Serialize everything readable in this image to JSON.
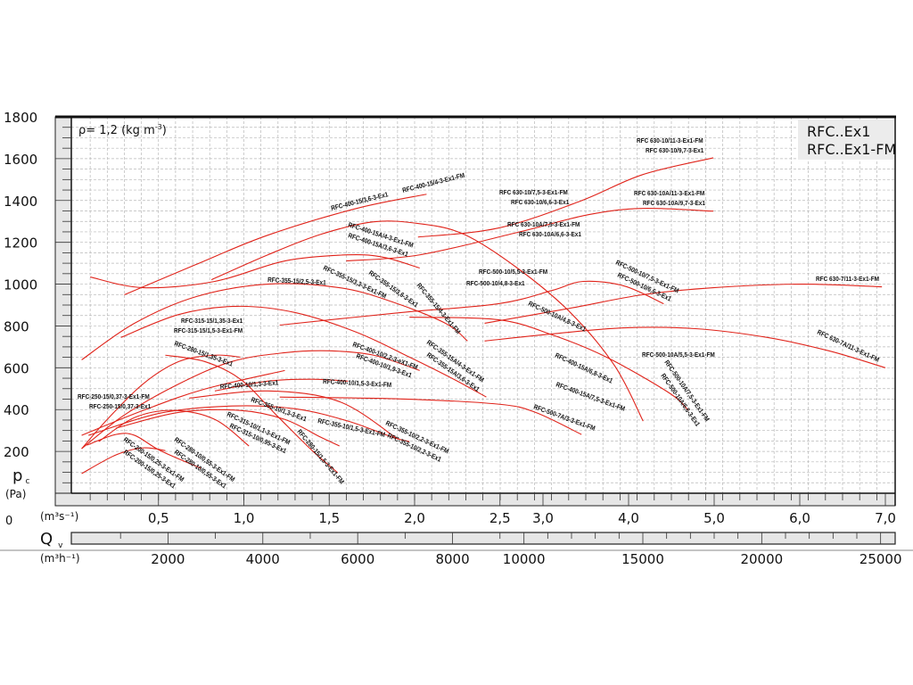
{
  "chart_data": {
    "type": "line",
    "title_lines": [
      "RFC..Ex1",
      "RFC..Ex1-FM"
    ],
    "density_note": "ρ= 1,2 (kg m",
    "density_exp": "-3",
    "density_close": ")",
    "ylabel": "p",
    "ylabel_sub": "c",
    "yunit": "(Pa)",
    "xlabel": "Q",
    "xlabel_sub": "v",
    "x1unit": "(m³s⁻¹)",
    "x2unit": "(m³h⁻¹)",
    "y_zero_label": "0",
    "ylim": [
      0,
      1800
    ],
    "xlim": [
      0,
      7.0
    ],
    "x_scale": "piecewise linear (0–2,5 expanded, 2,5–7,0 compressed)",
    "grid": true,
    "line_color": "#e0241b",
    "y_ticks": [
      200,
      400,
      600,
      800,
      1000,
      1200,
      1400,
      1600,
      1800
    ],
    "y_tick_labels": [
      "200",
      "400",
      "600",
      "800",
      "1000",
      "1200",
      "1400",
      "1600",
      "1800"
    ],
    "x1_ticks": [
      0.5,
      1.0,
      1.5,
      2.0,
      2.5,
      3.0,
      4.0,
      5.0,
      6.0,
      7.0
    ],
    "x1_tick_labels": [
      "0,5",
      "1,0",
      "1,5",
      "2,0",
      "2,5",
      "3,0",
      "4,0",
      "5,0",
      "6,0",
      "7,0"
    ],
    "x2_ticks": [
      2000,
      4000,
      6000,
      8000,
      10000,
      15000,
      20000,
      25000
    ],
    "x2_tick_labels": [
      "2000",
      "4000",
      "6000",
      "8000",
      "10000",
      "15000",
      "20000",
      "25000"
    ],
    "series": [
      {
        "x": [
          0.3,
          0.72,
          1.14,
          1.66,
          2.07
        ],
        "y": [
          949,
          1094,
          1234,
          1362,
          1430
        ]
      },
      {
        "x": [
          0.81,
          1.14,
          1.45,
          1.76,
          2.03,
          2.29,
          2.7,
          3.32,
          3.84,
          4.17
        ],
        "y": [
          1021,
          1140,
          1238,
          1298,
          1289,
          1238,
          1077,
          864,
          608,
          345
        ]
      },
      {
        "x": [
          0.1,
          0.41,
          0.83,
          1.24,
          1.61,
          1.82,
          2.03
        ],
        "y": [
          1034,
          983,
          1013,
          1111,
          1140,
          1128,
          1077
        ]
      },
      {
        "x": [
          0.05,
          0.36,
          0.72,
          1.14,
          1.56,
          1.87,
          2.18,
          2.31
        ],
        "y": [
          638,
          813,
          940,
          1000,
          983,
          915,
          813,
          728
        ]
      },
      {
        "x": [
          0.28,
          0.62,
          0.96,
          1.3,
          1.66,
          1.97,
          2.23,
          2.42
        ],
        "y": [
          745,
          855,
          894,
          864,
          770,
          651,
          545,
          460
        ]
      },
      {
        "x": [
          2.02,
          2.49,
          3.43,
          4.16,
          4.99
        ],
        "y": [
          1225,
          1268,
          1396,
          1523,
          1604
        ]
      },
      {
        "x": [
          1.6,
          2.03,
          2.7,
          3.53,
          4.16,
          4.99
        ],
        "y": [
          1111,
          1140,
          1247,
          1332,
          1362,
          1349
        ]
      },
      {
        "x": [
          1.21,
          1.92,
          2.49,
          3.11,
          3.47,
          3.95,
          4.41
        ],
        "y": [
          804,
          864,
          906,
          970,
          1013,
          991,
          906
        ]
      },
      {
        "x": [
          2.41,
          3.32,
          4.16,
          4.99,
          6.02,
          6.96
        ],
        "y": [
          813,
          885,
          949,
          983,
          1000,
          987
        ]
      },
      {
        "x": [
          2.41,
          3.11,
          3.95,
          4.78,
          5.62,
          6.34,
          7.0
        ],
        "y": [
          728,
          762,
          791,
          787,
          745,
          681,
          600
        ]
      },
      {
        "x": [
          1.97,
          2.49,
          3.11,
          3.74,
          4.47,
          4.7
        ],
        "y": [
          842,
          830,
          757,
          651,
          481,
          396
        ]
      },
      {
        "x": [
          0.05,
          0.3,
          0.62,
          0.93,
          1.24,
          1.5,
          1.76,
          2.03
        ],
        "y": [
          213,
          374,
          523,
          630,
          672,
          681,
          660,
          587
        ]
      },
      {
        "x": [
          0.05,
          0.41,
          0.77,
          1.24
        ],
        "y": [
          277,
          396,
          498,
          587
        ]
      },
      {
        "x": [
          0.83,
          1.14,
          1.4,
          1.61
        ],
        "y": [
          489,
          536,
          545,
          536
        ]
      },
      {
        "x": [
          0.09,
          0.51,
          0.93,
          1.3,
          1.61,
          1.87,
          1.97
        ],
        "y": [
          277,
          383,
          417,
          404,
          345,
          268,
          247
        ]
      },
      {
        "x": [
          0.68,
          1.14,
          1.56,
          1.9
        ],
        "y": [
          455,
          489,
          438,
          260
        ]
      },
      {
        "x": [
          1.21,
          1.92,
          2.49,
          2.91,
          3.45
        ],
        "y": [
          460,
          451,
          426,
          387,
          281
        ]
      },
      {
        "x": [
          0.54,
          0.77,
          0.98,
          1.19,
          1.4,
          1.55
        ],
        "y": [
          660,
          630,
          545,
          374,
          204,
          98
        ]
      },
      {
        "x": [
          0.25,
          0.62,
          0.98,
          1.24,
          1.45,
          1.56
        ],
        "y": [
          311,
          387,
          396,
          353,
          268,
          226
        ]
      },
      {
        "x": [
          0.05,
          0.2,
          0.41,
          0.62,
          0.83,
          0.98
        ],
        "y": [
          213,
          353,
          523,
          630,
          660,
          651
        ]
      },
      {
        "x": [
          0.08,
          0.25,
          0.36,
          0.51,
          0.75
        ],
        "y": [
          230,
          281,
          277,
          204,
          119
        ]
      },
      {
        "x": [
          0.05,
          0.25,
          0.41,
          0.54
        ],
        "y": [
          94,
          183,
          217,
          204
        ]
      },
      {
        "x": [
          0.15,
          0.36,
          0.59,
          0.83,
          1.03
        ],
        "y": [
          247,
          362,
          396,
          353,
          226
        ]
      }
    ],
    "curve_labels": [
      "RFC-400-15/3,6-3-Ex1",
      "RFC-400-15/4-3-Ex1-FM",
      "RFC-400-15A/4-3-Ex1-FM",
      "RFC-400-15A/3,6-3-Ex1",
      "RFC-355-15/2,5-3-Ex1",
      "RFC-355-15/3,3-3-Ex1-FM",
      "RFC-355-15/3,6-3-Ex1",
      "RFC-355-15/4-3-Ex1-FM",
      "RFC-315-15/1,35-3-Ex1",
      "RFC-315-15/1,5-3-Ex1-FM",
      "RFC-280-15/1,35-3-Ex1",
      "RFC-400-10/2,2-3-eX1-FM",
      "RFC-400-10/1,9-3-Ex1",
      "RFC-355-15A/4-3-Ex1-FM",
      "RFC-355-15A/3,6-3-Ex1",
      "RFC-250-15/0,37-3-Ex1-FM",
      "RFC-250-15/0,37-3-Ex1",
      "RFC-400-10/1,3-3-Ex1",
      "RFC-400-10/1,5-3-Ex1-FM",
      "RFC-355-10/1,3-3-Ex1",
      "RFC-355-10/1,5-3-Ex1-FM",
      "RFC-315-10/1,1-3-Ex1-FM",
      "RFC-315-10/0,95-3-Ex1",
      "RFC-280-15/1,5-3-Ex1-FM",
      "RFC-355-10/2,2-3-Ex1-FM",
      "RFC-355-10/2,2-3-Ex1",
      "RFC-200-15/0,25-3-Ex1-FM",
      "RFC-200-15/0,25-3-Ex1",
      "RFC-280-10/0,55-3-Ex1-FM",
      "RFC-280-10/0,55-3-Ex1",
      "RFC 630-10/11-3-Ex1-FM",
      "RFC 630-10/9,7-3-Ex1",
      "RFC 630-10/7,5-3-Ex1-FM",
      "RFC 630-10/6,6-3-Ex1",
      "RFC 630-10A/11-3-Ex1-FM",
      "RFC 630-10A/9,7-3-Ex1",
      "RFC 630-10A/7,5-3-Ex1-FM",
      "RFC 630-10A/6,6-3-Ex1",
      "RFC-500-10/5,5-3-Ex1-FM",
      "RFC-500-10/4,8-3-Ex1",
      "RFC-500-10/7,5-3-Ex1-FM",
      "RFC-500-10/6,6-3-Ex1",
      "RFC 630-7/11-3-Ex1-FM",
      "RFC-500-10A/4,8-3-Ex1",
      "RFC 630-7A/11-3-Ex1-FM",
      "RFC-400-15A/6,8-3-Ex1",
      "RFC-400-15A/7,5-3-Ex1-FM",
      "RFC-500-10A/5,5-3-Ex1-FM",
      "RFC-500-10A/7,5-3-Ex1-FM",
      "RFC-500-10A/6,6-3-Ex1",
      "RFC-500-7A/3-3-Ex1-FM"
    ]
  }
}
